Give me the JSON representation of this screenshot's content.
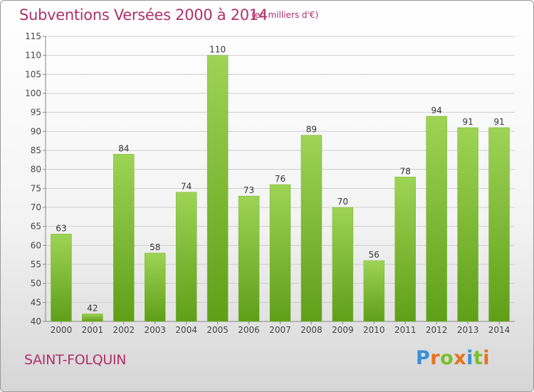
{
  "header": {
    "title": "Subventions Versées 2000 à 2014",
    "unit_note": "(en milliers d'€)"
  },
  "footer": {
    "commune": "SAINT-FOLQUIN",
    "brand": "Proxiti"
  },
  "colors": {
    "title": "#b0306a",
    "bar_light": "#9dd455",
    "bar_dark": "#5f9f18",
    "grid": "#cfcfcf",
    "brand_letters": [
      "#3a8fd6",
      "#e8731c",
      "#7bbf2a",
      "#e8731c",
      "#3a8fd6",
      "#7bbf2a",
      "#e8731c"
    ]
  },
  "chart_data": {
    "type": "bar",
    "categories": [
      "2000",
      "2001",
      "2002",
      "2003",
      "2004",
      "2005",
      "2006",
      "2007",
      "2008",
      "2009",
      "2010",
      "2011",
      "2012",
      "2013",
      "2014"
    ],
    "values": [
      63,
      42,
      84,
      58,
      74,
      110,
      73,
      76,
      89,
      70,
      56,
      78,
      94,
      91,
      91
    ],
    "title": "Subventions Versées 2000 à 2014",
    "ylim": [
      40,
      115
    ],
    "yticks": [
      40,
      45,
      50,
      55,
      60,
      65,
      70,
      75,
      80,
      85,
      90,
      95,
      100,
      105,
      110,
      115
    ],
    "grid": true,
    "data_labels": true
  }
}
